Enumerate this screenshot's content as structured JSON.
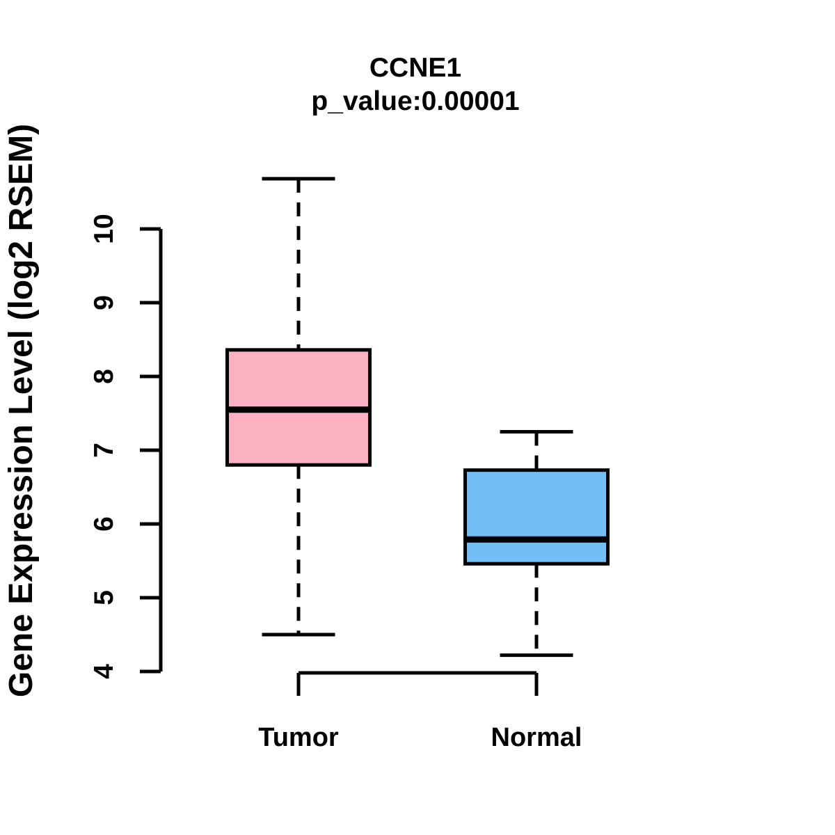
{
  "figure": {
    "title": "CCNE1",
    "subtitle": "p_value:0.00001",
    "ylabel": "Gene Expression Level (log2 RSEM)",
    "background_color": "#ffffff",
    "line_color": "#000000"
  },
  "chart_data": {
    "type": "boxplot",
    "title": "CCNE1",
    "subtitle": "p_value:0.00001",
    "xlabel": "",
    "ylabel": "Gene Expression Level (log2 RSEM)",
    "categories": [
      "Tumor",
      "Normal"
    ],
    "yticks": [
      4,
      5,
      6,
      7,
      8,
      9,
      10
    ],
    "ylim": [
      4,
      10
    ],
    "grid": false,
    "legend": "none",
    "series": [
      {
        "name": "Tumor",
        "color": "#FCB1C3",
        "whisker_low": 4.5,
        "q1": 6.8,
        "median": 7.55,
        "q3": 8.36,
        "whisker_high": 10.68
      },
      {
        "name": "Normal",
        "color": "#73BEF4",
        "whisker_low": 4.22,
        "q1": 5.46,
        "median": 5.79,
        "q3": 6.73,
        "whisker_high": 7.25
      }
    ]
  }
}
